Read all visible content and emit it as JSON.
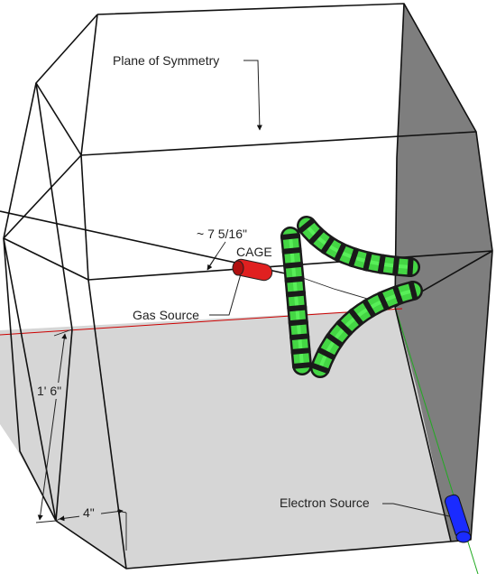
{
  "labels": {
    "plane_of_symmetry": "Plane of Symmetry",
    "gap_dimension": "~ 7 5/16\"",
    "cage": "CAGE",
    "gas_source": "Gas Source",
    "height_dimension": "1' 6\"",
    "width_dimension": "4\"",
    "electron_source": "Electron Source"
  },
  "colors": {
    "background": "#ffffff",
    "floor": "#d6d6d6",
    "right_face": "#7e7e7e",
    "edge": "#111111",
    "coil": "#44d644",
    "coil_highlight": "#66ff66",
    "coil_band": "#1a1a1a",
    "gas_source": "#e02020",
    "electron_source": "#1a2bff",
    "axis_red": "#cc0000",
    "axis_green": "#22aa22"
  }
}
